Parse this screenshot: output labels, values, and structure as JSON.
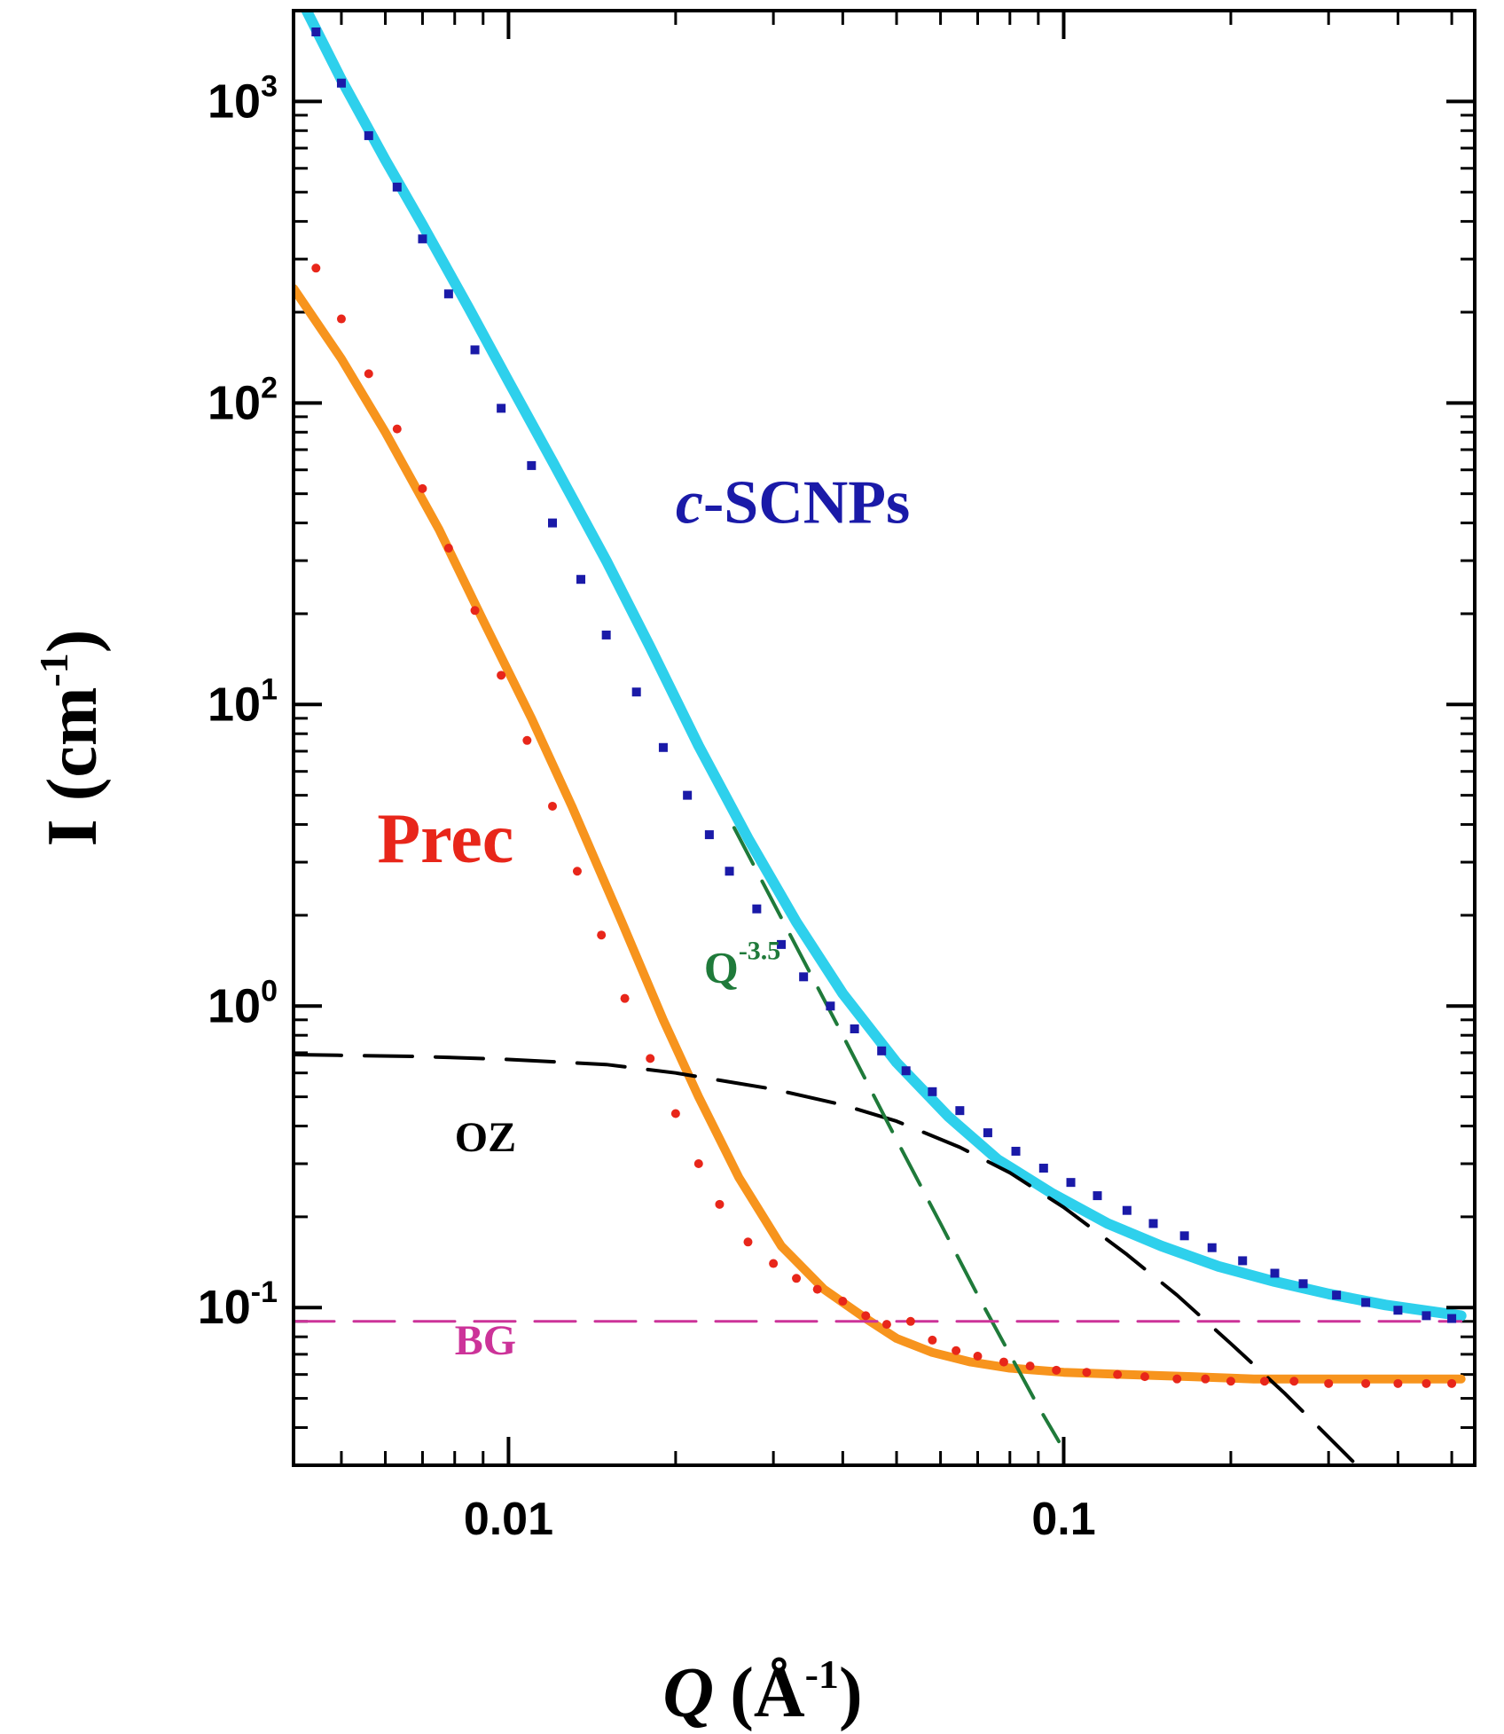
{
  "chart_data": {
    "type": "scatter",
    "title": "",
    "xlabel": {
      "symbol": "Q",
      "unit": "(Å",
      "exp": "-1",
      "close": ")"
    },
    "ylabel": {
      "main": "I (cm",
      "exp": "-1",
      "close": ")"
    },
    "xscale": "log",
    "yscale": "log",
    "xlim": [
      0.0041,
      0.55
    ],
    "ylim": [
      0.03,
      2000
    ],
    "x_ticks": [
      {
        "value": 0.01,
        "label": "0.01"
      },
      {
        "value": 0.1,
        "label": "0.1"
      }
    ],
    "y_ticks": [
      {
        "value": 0.1,
        "base": "10",
        "exp": "-1"
      },
      {
        "value": 1,
        "base": "10",
        "exp": "0"
      },
      {
        "value": 10,
        "base": "10",
        "exp": "1"
      },
      {
        "value": 100,
        "base": "10",
        "exp": "2"
      },
      {
        "value": 1000,
        "base": "10",
        "exp": "3"
      }
    ],
    "series": [
      {
        "name": "c-SCNPs data",
        "kind": "points",
        "marker": "square",
        "color": "#1a1aa8",
        "x": [
          0.0045,
          0.005,
          0.0056,
          0.0063,
          0.007,
          0.0078,
          0.0087,
          0.0097,
          0.011,
          0.012,
          0.0135,
          0.015,
          0.017,
          0.019,
          0.021,
          0.023,
          0.025,
          0.028,
          0.031,
          0.034,
          0.038,
          0.042,
          0.047,
          0.052,
          0.058,
          0.065,
          0.073,
          0.082,
          0.092,
          0.103,
          0.115,
          0.13,
          0.145,
          0.165,
          0.185,
          0.21,
          0.24,
          0.27,
          0.31,
          0.35,
          0.4,
          0.45,
          0.5
        ],
        "y": [
          1700,
          1150,
          770,
          520,
          350,
          230,
          150,
          96,
          62,
          40,
          26,
          17,
          11,
          7.2,
          5.0,
          3.7,
          2.8,
          2.1,
          1.6,
          1.25,
          1.0,
          0.84,
          0.71,
          0.61,
          0.52,
          0.45,
          0.38,
          0.33,
          0.29,
          0.26,
          0.235,
          0.21,
          0.19,
          0.173,
          0.158,
          0.143,
          0.13,
          0.12,
          0.11,
          0.104,
          0.098,
          0.094,
          0.092
        ]
      },
      {
        "name": "c-SCNPs fit",
        "kind": "line",
        "color": "#2ed0ec",
        "x": [
          0.0043,
          0.005,
          0.006,
          0.007,
          0.0085,
          0.01,
          0.012,
          0.015,
          0.018,
          0.022,
          0.027,
          0.033,
          0.04,
          0.05,
          0.062,
          0.076,
          0.095,
          0.12,
          0.15,
          0.19,
          0.24,
          0.3,
          0.38,
          0.46,
          0.52
        ],
        "y": [
          2050,
          1180,
          640,
          390,
          205,
          118,
          64,
          30,
          15.5,
          7.3,
          3.6,
          1.9,
          1.1,
          0.65,
          0.43,
          0.31,
          0.24,
          0.19,
          0.16,
          0.137,
          0.122,
          0.111,
          0.102,
          0.097,
          0.094
        ]
      },
      {
        "name": "Prec data",
        "kind": "points",
        "marker": "circle",
        "color": "#e8261a",
        "x": [
          0.0045,
          0.005,
          0.0056,
          0.0063,
          0.007,
          0.0078,
          0.0087,
          0.0097,
          0.0108,
          0.012,
          0.0133,
          0.0147,
          0.0162,
          0.018,
          0.02,
          0.022,
          0.024,
          0.027,
          0.03,
          0.033,
          0.036,
          0.04,
          0.044,
          0.048,
          0.053,
          0.058,
          0.064,
          0.07,
          0.078,
          0.087,
          0.097,
          0.11,
          0.125,
          0.14,
          0.16,
          0.18,
          0.2,
          0.23,
          0.26,
          0.3,
          0.35,
          0.4,
          0.45,
          0.5
        ],
        "y": [
          280,
          190,
          125,
          82,
          52,
          33,
          20.5,
          12.5,
          7.6,
          4.6,
          2.8,
          1.72,
          1.06,
          0.67,
          0.44,
          0.3,
          0.22,
          0.165,
          0.14,
          0.125,
          0.115,
          0.105,
          0.094,
          0.088,
          0.09,
          0.078,
          0.072,
          0.069,
          0.066,
          0.064,
          0.062,
          0.061,
          0.06,
          0.059,
          0.058,
          0.058,
          0.057,
          0.057,
          0.057,
          0.056,
          0.056,
          0.056,
          0.056,
          0.056
        ]
      },
      {
        "name": "Prec fit",
        "kind": "line",
        "color": "#f7941d",
        "x": [
          0.0041,
          0.005,
          0.006,
          0.0075,
          0.009,
          0.011,
          0.013,
          0.016,
          0.019,
          0.022,
          0.026,
          0.031,
          0.037,
          0.044,
          0.05,
          0.058,
          0.068,
          0.08,
          0.1,
          0.13,
          0.17,
          0.22,
          0.3,
          0.4,
          0.52
        ],
        "y": [
          240,
          140,
          80,
          38,
          19,
          9.0,
          4.6,
          1.9,
          0.9,
          0.5,
          0.27,
          0.16,
          0.115,
          0.092,
          0.079,
          0.071,
          0.066,
          0.063,
          0.061,
          0.06,
          0.059,
          0.058,
          0.058,
          0.058,
          0.058
        ]
      },
      {
        "name": "Q^-3.5",
        "kind": "dashed-line",
        "color": "#1f7a3a",
        "x": [
          0.0255,
          0.03,
          0.04,
          0.05,
          0.06,
          0.07,
          0.08,
          0.09,
          0.098
        ],
        "y": [
          3.9,
          2.2,
          0.8,
          0.36,
          0.19,
          0.11,
          0.07,
          0.047,
          0.036
        ]
      },
      {
        "name": "OZ",
        "kind": "dashed-line",
        "color": "#000000",
        "x": [
          0.0041,
          0.007,
          0.01,
          0.015,
          0.02,
          0.03,
          0.04,
          0.05,
          0.065,
          0.08,
          0.1,
          0.13,
          0.16,
          0.2,
          0.25,
          0.31,
          0.35
        ],
        "y": [
          0.69,
          0.68,
          0.665,
          0.64,
          0.6,
          0.53,
          0.47,
          0.415,
          0.34,
          0.28,
          0.215,
          0.15,
          0.11,
          0.076,
          0.052,
          0.035,
          0.028
        ]
      },
      {
        "name": "BG",
        "kind": "dashed-line",
        "color": "#cc3399",
        "x": [
          0.0041,
          0.52
        ],
        "y": [
          0.09,
          0.09
        ]
      }
    ],
    "annotations": [
      {
        "id": "scnp",
        "prefix": "c",
        "text": "-SCNPs",
        "color": "#1a1aa8",
        "x": 0.02,
        "y": 40
      },
      {
        "id": "prec",
        "text": "Prec",
        "color": "#e8261a",
        "x": 0.0058,
        "y": 3.0
      },
      {
        "id": "q35",
        "base": "Q",
        "exp": "-3.5",
        "color": "#1f7a3a",
        "x": 0.0225,
        "y": 1.2
      },
      {
        "id": "oz",
        "text": "OZ",
        "color": "#000000",
        "x": 0.008,
        "y": 0.33
      },
      {
        "id": "bg",
        "text": "BG",
        "color": "#cc3399",
        "x": 0.008,
        "y": 0.07
      }
    ]
  }
}
